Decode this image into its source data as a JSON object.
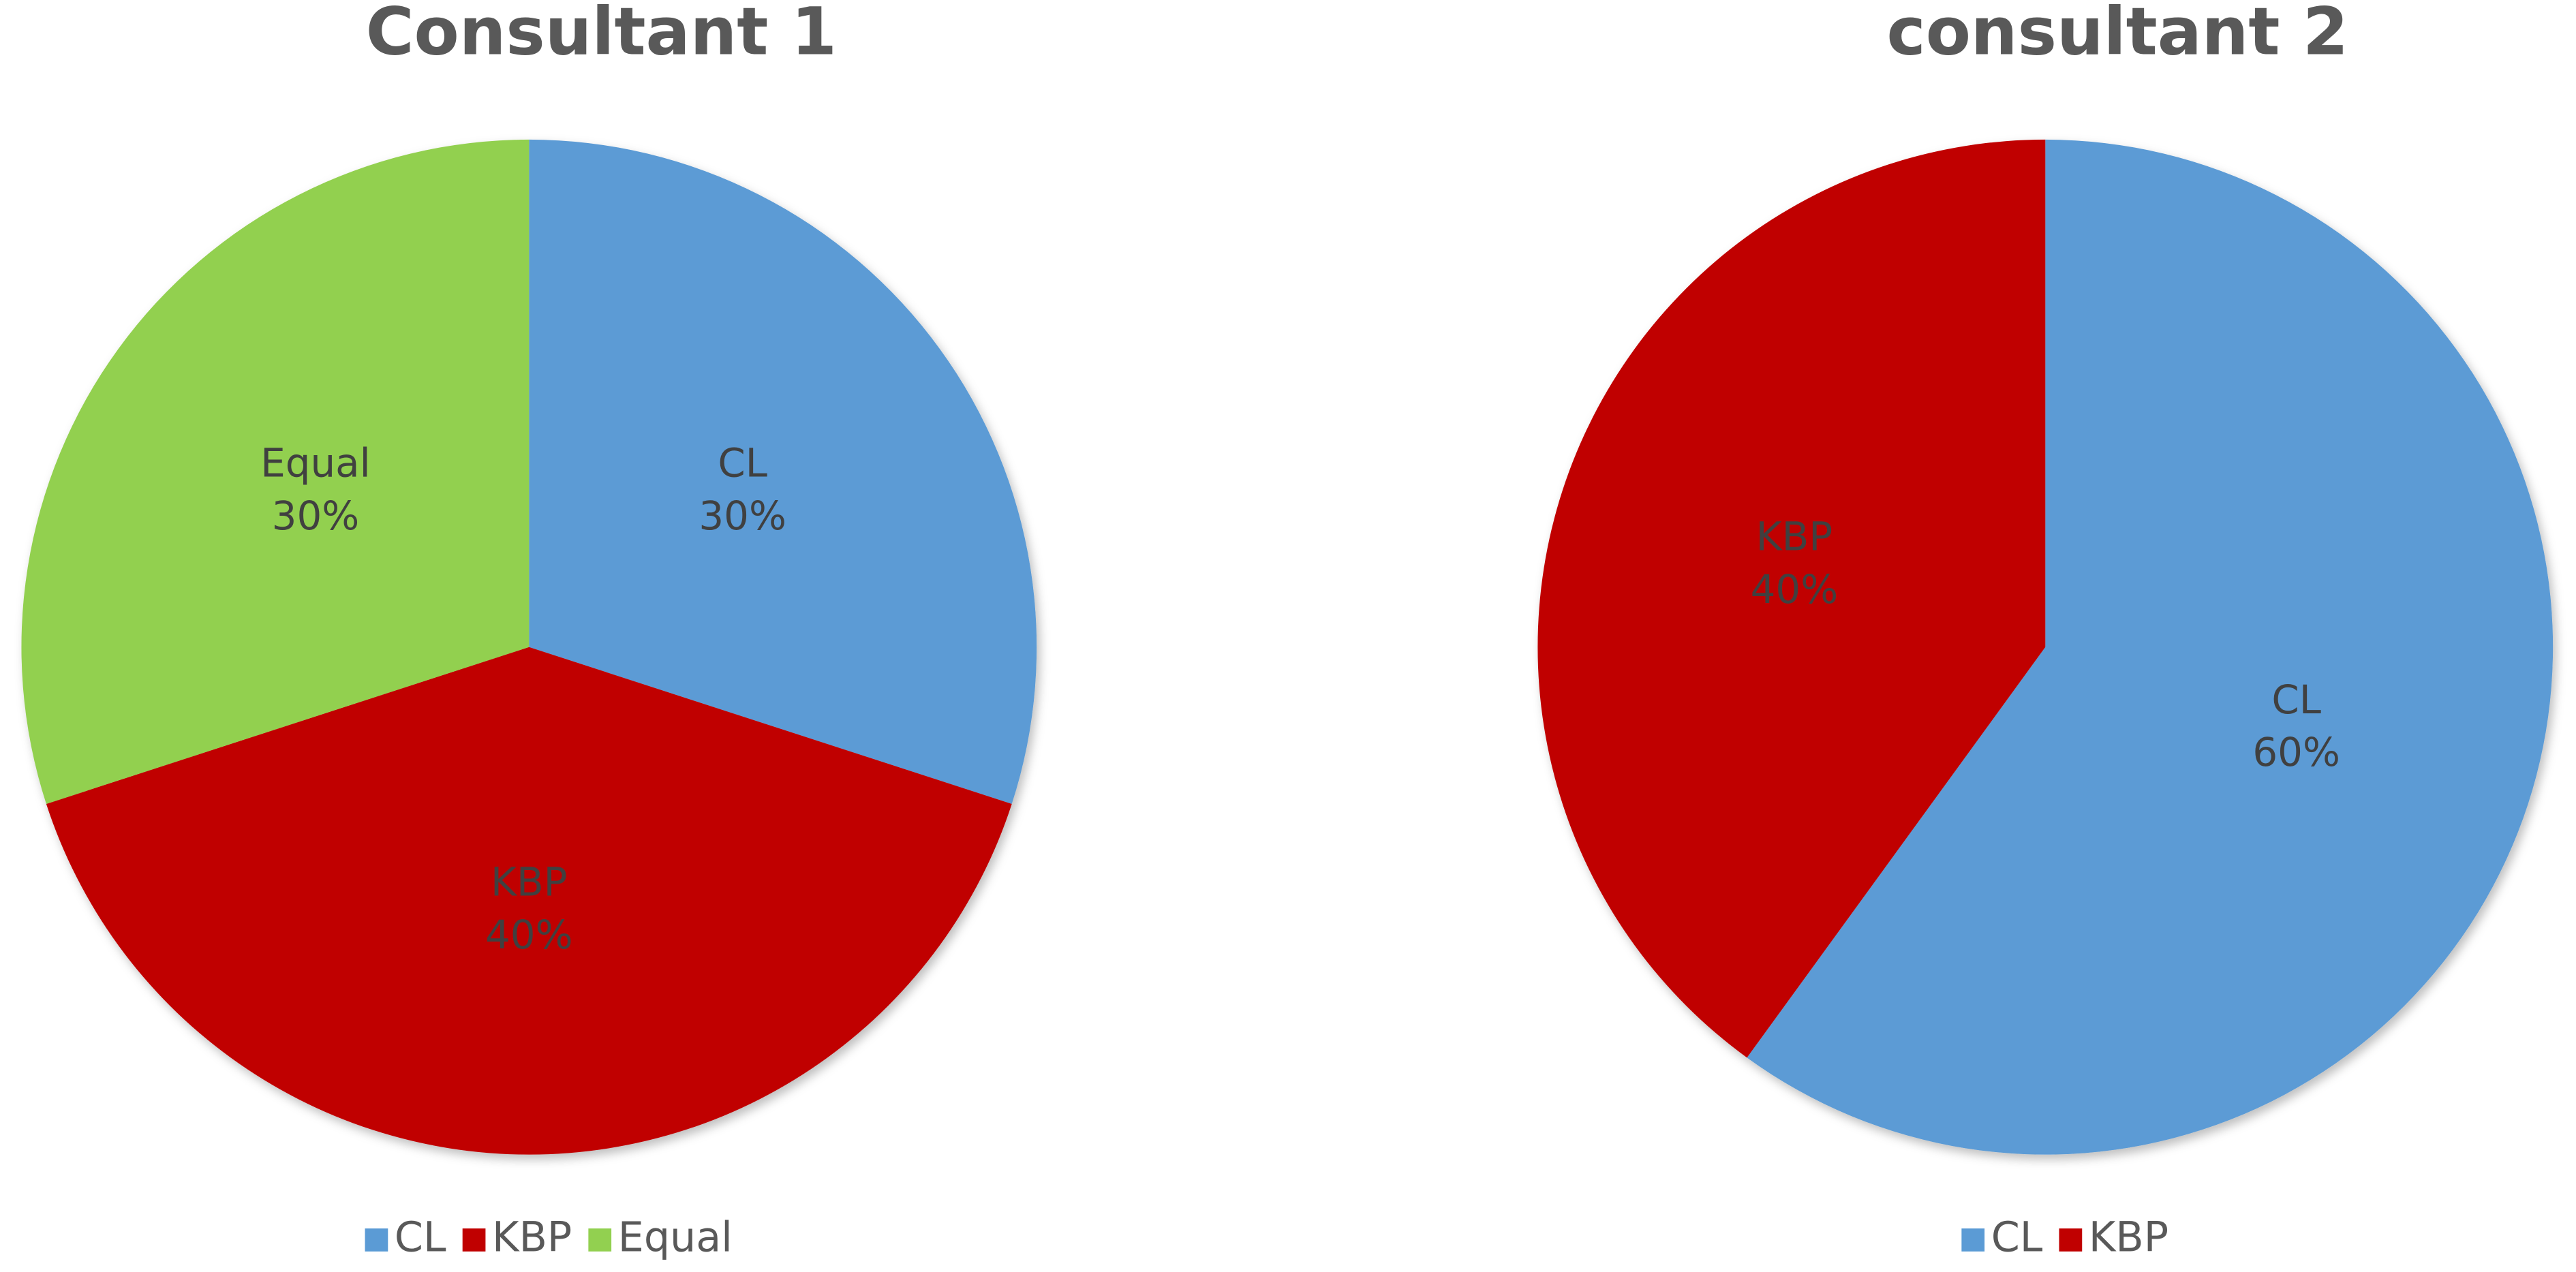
{
  "chart_data": [
    {
      "type": "pie",
      "title": "Consultant 1",
      "categories": [
        "CL",
        "KBP",
        "Equal"
      ],
      "values": [
        30,
        40,
        30
      ],
      "value_labels": [
        "30%",
        "40%",
        "30%"
      ],
      "colors": [
        "#5b9bd5",
        "#c00000",
        "#92d050"
      ],
      "legend": "bottom"
    },
    {
      "type": "pie",
      "title": "consultant 2",
      "categories": [
        "CL",
        "KBP"
      ],
      "values": [
        60,
        40
      ],
      "value_labels": [
        "60%",
        "40%"
      ],
      "colors": [
        "#5b9bd5",
        "#c00000"
      ],
      "legend": "bottom"
    }
  ]
}
